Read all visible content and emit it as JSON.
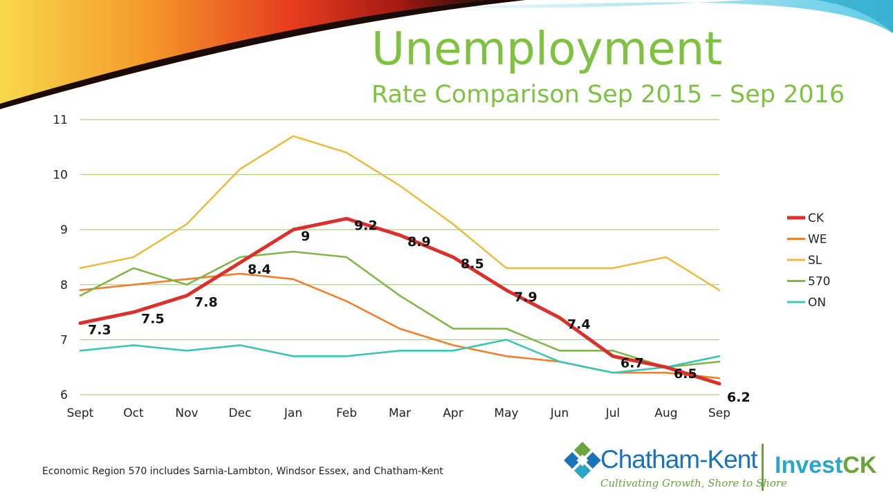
{
  "slide": {
    "title": "Unemployment",
    "subtitle": "Rate Comparison Sep 2015 – Sep 2016",
    "footnote": "Economic Region 570 includes Sarnia-Lambton, Windsor Essex, and Chatham-Kent"
  },
  "logo": {
    "name": "Chatham-Kent",
    "tagline": "Cultivating Growth, Shore to Shore",
    "invest_prefix": "Invest",
    "invest_suffix": "CK"
  },
  "colors": {
    "title": "#7fc241",
    "grid": "#9bc66b",
    "CK": "#d9312b",
    "WE": "#f07f2e",
    "SL": "#e8bd45",
    "570": "#80b649",
    "ON": "#3cc4b4"
  },
  "chart_data": {
    "type": "line",
    "categories": [
      "Sept",
      "Oct",
      "Nov",
      "Dec",
      "Jan",
      "Feb",
      "Mar",
      "Apr",
      "May",
      "Jun",
      "Jul",
      "Aug",
      "Sep"
    ],
    "ylim": [
      6,
      11
    ],
    "yticks": [
      6,
      7,
      8,
      9,
      10,
      11
    ],
    "grid": true,
    "legend_position": "right",
    "series": [
      {
        "name": "CK",
        "values": [
          7.3,
          7.5,
          7.8,
          8.4,
          9,
          9.2,
          8.9,
          8.5,
          7.9,
          7.4,
          6.7,
          6.5,
          6.2
        ],
        "data_labels": true,
        "emphasis": true
      },
      {
        "name": "WE",
        "values": [
          7.9,
          8.0,
          8.1,
          8.2,
          8.1,
          7.7,
          7.2,
          6.9,
          6.7,
          6.6,
          6.4,
          6.4,
          6.3
        ]
      },
      {
        "name": "SL",
        "values": [
          8.3,
          8.5,
          9.1,
          10.1,
          10.7,
          10.4,
          9.8,
          9.1,
          8.3,
          8.3,
          8.3,
          8.5,
          7.9
        ]
      },
      {
        "name": "570",
        "values": [
          7.8,
          8.3,
          8.0,
          8.5,
          8.6,
          8.5,
          7.8,
          7.2,
          7.2,
          6.8,
          6.8,
          6.5,
          6.6
        ]
      },
      {
        "name": "ON",
        "values": [
          6.8,
          6.9,
          6.8,
          6.9,
          6.7,
          6.7,
          6.8,
          6.8,
          7.0,
          6.6,
          6.4,
          6.5,
          6.7
        ]
      }
    ]
  }
}
